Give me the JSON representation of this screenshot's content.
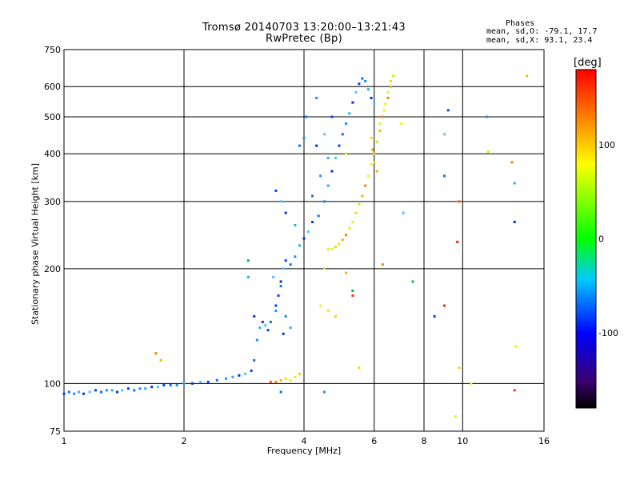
{
  "header": {
    "title_line1": "Tromsø 20140703 13:20:00–13:21:43",
    "title_line2": "RwPretec (Bp)",
    "phases_heading": "Phases",
    "phases_o": "mean, sd,O: -79.1, 17.7",
    "phases_x": "mean, sd,X:  93.1, 23.4"
  },
  "colorbar": {
    "unit_label": "[deg]",
    "ticks": [
      100,
      0,
      -100
    ],
    "range": [
      -180,
      180
    ],
    "colormap": "rainbow: black-purple-blue-cyan-green-yellow-red"
  },
  "chart_data": {
    "type": "scatter",
    "xlabel": "Frequency [MHz]",
    "ylabel": "Stationary phase Virtual Height [km]",
    "xscale": "log",
    "yscale": "log",
    "xlim": [
      1,
      16
    ],
    "ylim": [
      75,
      750
    ],
    "xticks": [
      1,
      2,
      4,
      6,
      8,
      10,
      16
    ],
    "yticks": [
      75,
      100,
      200,
      300,
      400,
      500,
      600,
      750
    ],
    "grid": true,
    "series": [
      {
        "mode": "O",
        "color_range": "blue to cyan (approx -80 deg)",
        "points": [
          [
            1.0,
            94
          ],
          [
            1.03,
            95
          ],
          [
            1.06,
            94
          ],
          [
            1.09,
            95
          ],
          [
            1.12,
            94
          ],
          [
            1.16,
            95
          ],
          [
            1.2,
            96
          ],
          [
            1.24,
            95
          ],
          [
            1.28,
            96
          ],
          [
            1.32,
            96
          ],
          [
            1.36,
            95
          ],
          [
            1.4,
            96
          ],
          [
            1.45,
            97
          ],
          [
            1.5,
            96
          ],
          [
            1.55,
            97
          ],
          [
            1.6,
            97
          ],
          [
            1.66,
            98
          ],
          [
            1.72,
            98
          ],
          [
            1.78,
            99
          ],
          [
            1.85,
            99
          ],
          [
            1.92,
            99
          ],
          [
            2.0,
            100
          ],
          [
            2.1,
            100
          ],
          [
            2.2,
            101
          ],
          [
            2.3,
            101
          ],
          [
            2.42,
            102
          ],
          [
            2.55,
            103
          ],
          [
            2.65,
            104
          ],
          [
            2.75,
            105
          ],
          [
            2.85,
            106
          ],
          [
            2.95,
            108
          ],
          [
            3.0,
            115
          ],
          [
            3.05,
            130
          ],
          [
            3.1,
            140
          ],
          [
            3.15,
            145
          ],
          [
            3.2,
            142
          ],
          [
            3.25,
            138
          ],
          [
            3.3,
            145
          ],
          [
            3.4,
            155
          ],
          [
            3.45,
            170
          ],
          [
            3.5,
            185
          ],
          [
            3.55,
            200
          ],
          [
            3.6,
            210
          ],
          [
            3.7,
            205
          ],
          [
            3.8,
            215
          ],
          [
            3.9,
            230
          ],
          [
            4.0,
            240
          ],
          [
            4.1,
            250
          ],
          [
            4.2,
            265
          ],
          [
            4.35,
            275
          ],
          [
            4.5,
            300
          ],
          [
            4.6,
            330
          ],
          [
            4.7,
            360
          ],
          [
            4.8,
            390
          ],
          [
            4.9,
            420
          ],
          [
            5.0,
            450
          ],
          [
            5.1,
            480
          ],
          [
            5.2,
            510
          ],
          [
            5.3,
            545
          ],
          [
            5.4,
            580
          ],
          [
            5.5,
            610
          ],
          [
            5.6,
            630
          ],
          [
            5.7,
            620
          ],
          [
            5.8,
            590
          ],
          [
            5.9,
            560
          ],
          [
            6.0,
            540
          ],
          [
            3.4,
            160
          ],
          [
            3.5,
            180
          ],
          [
            3.6,
            150
          ],
          [
            3.7,
            140
          ],
          [
            3.55,
            135
          ],
          [
            3.35,
            190
          ],
          [
            3.45,
            170
          ],
          [
            4.2,
            310
          ],
          [
            4.4,
            350
          ],
          [
            4.6,
            390
          ],
          [
            4.3,
            420
          ],
          [
            4.5,
            450
          ],
          [
            4.7,
            500
          ],
          [
            3.9,
            420
          ],
          [
            4.0,
            440
          ],
          [
            3.8,
            260
          ],
          [
            3.6,
            280
          ],
          [
            3.5,
            300
          ],
          [
            3.4,
            320
          ],
          [
            4.05,
            500
          ],
          [
            4.3,
            560
          ],
          [
            2.9,
            190
          ],
          [
            3.0,
            150
          ],
          [
            9.0,
            450
          ],
          [
            9.2,
            520
          ],
          [
            9.0,
            350
          ],
          [
            11.5,
            500
          ],
          [
            13.5,
            335
          ],
          [
            13.5,
            265
          ],
          [
            7.1,
            280
          ],
          [
            8.5,
            150
          ],
          [
            3.5,
            95
          ],
          [
            4.5,
            95
          ]
        ]
      },
      {
        "mode": "X",
        "color_range": "yellow to orange (approx +90 deg)",
        "points": [
          [
            4.6,
            225
          ],
          [
            4.7,
            225
          ],
          [
            4.8,
            228
          ],
          [
            4.9,
            232
          ],
          [
            5.0,
            238
          ],
          [
            5.1,
            245
          ],
          [
            5.2,
            255
          ],
          [
            5.3,
            265
          ],
          [
            5.4,
            280
          ],
          [
            5.5,
            295
          ],
          [
            5.6,
            310
          ],
          [
            5.7,
            330
          ],
          [
            5.8,
            350
          ],
          [
            5.9,
            375
          ],
          [
            6.0,
            400
          ],
          [
            6.1,
            430
          ],
          [
            6.2,
            460
          ],
          [
            6.3,
            500
          ],
          [
            6.4,
            540
          ],
          [
            6.5,
            580
          ],
          [
            6.6,
            620
          ],
          [
            6.7,
            640
          ],
          [
            6.6,
            600
          ],
          [
            6.5,
            560
          ],
          [
            6.35,
            520
          ],
          [
            6.2,
            480
          ],
          [
            5.9,
            440
          ],
          [
            6.0,
            380
          ],
          [
            6.1,
            360
          ],
          [
            5.95,
            410
          ],
          [
            3.7,
            102
          ],
          [
            3.8,
            104
          ],
          [
            3.9,
            106
          ],
          [
            3.6,
            103
          ],
          [
            3.5,
            102
          ],
          [
            3.4,
            101
          ],
          [
            4.6,
            155
          ],
          [
            4.4,
            160
          ],
          [
            4.8,
            150
          ],
          [
            4.5,
            200
          ],
          [
            5.1,
            195
          ],
          [
            6.3,
            205
          ],
          [
            7.0,
            480
          ],
          [
            9.6,
            82
          ],
          [
            9.8,
            110
          ],
          [
            11.6,
            405
          ],
          [
            14.5,
            640
          ],
          [
            13.3,
            380
          ],
          [
            13.6,
            125
          ],
          [
            10.5,
            100
          ],
          [
            5.5,
            110
          ],
          [
            5.1,
            400
          ],
          [
            1.75,
            115
          ],
          [
            1.7,
            120
          ]
        ]
      },
      {
        "mode": "other",
        "color_range": "red / green scattered",
        "points": [
          [
            2.9,
            210
          ],
          [
            5.3,
            170
          ],
          [
            9.8,
            300
          ],
          [
            9.7,
            235
          ],
          [
            7.5,
            185
          ],
          [
            13.5,
            96
          ],
          [
            3.3,
            101
          ],
          [
            9.0,
            160
          ],
          [
            5.3,
            175
          ]
        ]
      }
    ]
  }
}
